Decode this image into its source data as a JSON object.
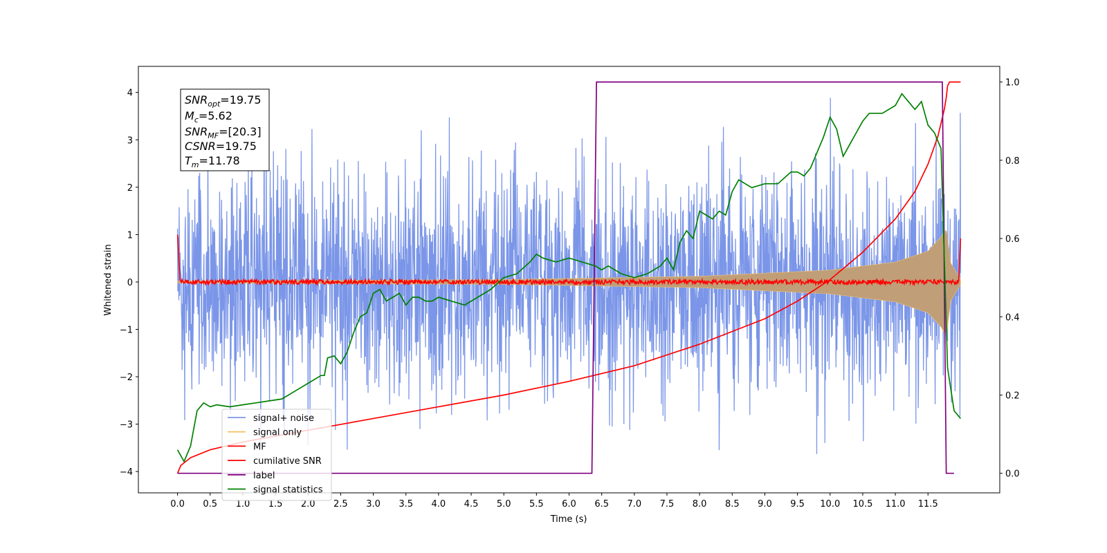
{
  "chart_data": {
    "type": "line",
    "xlabel": "Time (s)",
    "ylabel": "Whitened strain",
    "xlim": [
      -0.6,
      12.6
    ],
    "ylim": [
      -4.45,
      4.55
    ],
    "y2lim": [
      -0.05,
      1.04
    ],
    "x_ticks": [
      "0.0",
      "0.5",
      "1.0",
      "1.5",
      "2.0",
      "2.5",
      "3.0",
      "3.5",
      "4.0",
      "4.5",
      "5.0",
      "5.5",
      "6.0",
      "6.5",
      "7.0",
      "7.5",
      "8.0",
      "8.5",
      "9.0",
      "9.5",
      "10.0",
      "10.5",
      "11.0",
      "11.5"
    ],
    "y_ticks": [
      "−4",
      "−3",
      "−2",
      "−1",
      "0",
      "1",
      "2",
      "3",
      "4"
    ],
    "y2_ticks": [
      "0.0",
      "0.2",
      "0.4",
      "0.6",
      "0.8",
      "1.0"
    ],
    "annotation": {
      "snr_opt": {
        "base": "SNR",
        "sub": "opt",
        "value": "=19.75"
      },
      "mc": {
        "base": "M",
        "sub": "c",
        "value": "=5.62"
      },
      "snr_mf": {
        "base": "SNR",
        "sub": "MF",
        "value": "=[20.3]"
      },
      "csnr": {
        "base": "CSNR",
        "sub": "",
        "value": "=19.75"
      },
      "tm": {
        "base": "T",
        "sub": "m",
        "value": "=11.78"
      }
    },
    "series": [
      {
        "name": "signal+ noise",
        "color": "#7b96e8",
        "axis": "left",
        "kind": "noise",
        "t_start": 0.0,
        "t_end": 12.0,
        "typical_amplitude": 1.9,
        "peak_max": 4.17,
        "peak_min": -3.98
      },
      {
        "name": "signal only",
        "color": "#f5c26b",
        "axis": "left",
        "kind": "envelope",
        "fill_color": "#bf9e78",
        "envelope": {
          "t": [
            0.0,
            5.0,
            8.0,
            10.0,
            11.0,
            11.5,
            11.7,
            11.78,
            11.85,
            12.0
          ],
          "amp": [
            0.02,
            0.05,
            0.12,
            0.25,
            0.42,
            0.65,
            0.95,
            1.15,
            0.4,
            0.05
          ]
        }
      },
      {
        "name": "MF",
        "color": "#ff0000",
        "axis": "left",
        "kind": "mf",
        "t_start": 0.0,
        "t_end": 12.0,
        "start_value": 1.0,
        "end_value": 0.92,
        "jitter": 0.05
      },
      {
        "name": "cumilative SNR",
        "color": "#ff0000",
        "axis": "right",
        "kind": "line",
        "x": [
          0.0,
          0.05,
          0.2,
          0.5,
          1.0,
          2.0,
          3.0,
          4.0,
          5.0,
          6.0,
          7.0,
          8.0,
          9.0,
          9.5,
          10.0,
          10.5,
          11.0,
          11.3,
          11.5,
          11.65,
          11.75,
          11.78,
          11.8,
          11.83,
          12.0
        ],
        "y": [
          0.0,
          0.02,
          0.04,
          0.06,
          0.08,
          0.11,
          0.14,
          0.17,
          0.2,
          0.235,
          0.275,
          0.33,
          0.395,
          0.44,
          0.495,
          0.565,
          0.65,
          0.72,
          0.79,
          0.86,
          0.93,
          0.96,
          0.99,
          1.0,
          1.0
        ]
      },
      {
        "name": "label",
        "color": "#800080",
        "axis": "right",
        "kind": "line",
        "x": [
          0.0,
          6.35,
          6.42,
          11.72,
          11.78,
          11.9
        ],
        "y": [
          0.0,
          0.0,
          1.0,
          1.0,
          0.0,
          0.0
        ]
      },
      {
        "name": "signal statistics",
        "color": "#008000",
        "axis": "right",
        "kind": "line",
        "x": [
          0.0,
          0.1,
          0.2,
          0.3,
          0.4,
          0.5,
          0.6,
          0.8,
          1.0,
          1.2,
          1.4,
          1.6,
          1.8,
          2.0,
          2.2,
          2.25,
          2.3,
          2.4,
          2.5,
          2.6,
          2.7,
          2.8,
          2.9,
          3.0,
          3.1,
          3.2,
          3.3,
          3.4,
          3.5,
          3.6,
          3.7,
          3.8,
          3.9,
          4.0,
          4.2,
          4.4,
          4.6,
          4.8,
          5.0,
          5.2,
          5.4,
          5.5,
          5.6,
          5.8,
          6.0,
          6.2,
          6.4,
          6.5,
          6.6,
          6.8,
          7.0,
          7.2,
          7.4,
          7.5,
          7.6,
          7.7,
          7.8,
          7.9,
          8.0,
          8.1,
          8.2,
          8.3,
          8.4,
          8.5,
          8.6,
          8.8,
          9.0,
          9.2,
          9.4,
          9.5,
          9.6,
          9.7,
          9.8,
          9.9,
          10.0,
          10.1,
          10.2,
          10.3,
          10.4,
          10.5,
          10.6,
          10.8,
          11.0,
          11.1,
          11.2,
          11.3,
          11.4,
          11.5,
          11.6,
          11.7,
          11.8,
          11.9,
          12.0
        ],
        "y": [
          0.06,
          0.03,
          0.07,
          0.16,
          0.18,
          0.17,
          0.175,
          0.17,
          0.175,
          0.18,
          0.185,
          0.19,
          0.21,
          0.23,
          0.25,
          0.25,
          0.295,
          0.3,
          0.28,
          0.31,
          0.36,
          0.4,
          0.41,
          0.46,
          0.47,
          0.44,
          0.45,
          0.46,
          0.43,
          0.45,
          0.45,
          0.44,
          0.44,
          0.45,
          0.44,
          0.43,
          0.45,
          0.47,
          0.5,
          0.51,
          0.54,
          0.56,
          0.55,
          0.54,
          0.55,
          0.54,
          0.53,
          0.52,
          0.53,
          0.51,
          0.5,
          0.51,
          0.53,
          0.55,
          0.52,
          0.59,
          0.62,
          0.6,
          0.67,
          0.66,
          0.65,
          0.67,
          0.66,
          0.72,
          0.75,
          0.73,
          0.74,
          0.74,
          0.77,
          0.77,
          0.76,
          0.78,
          0.82,
          0.86,
          0.91,
          0.88,
          0.81,
          0.84,
          0.87,
          0.9,
          0.92,
          0.92,
          0.94,
          0.97,
          0.95,
          0.93,
          0.95,
          0.89,
          0.87,
          0.83,
          0.27,
          0.16,
          0.14
        ]
      }
    ],
    "legend": {
      "position": "lower-left"
    },
    "grid": false
  }
}
